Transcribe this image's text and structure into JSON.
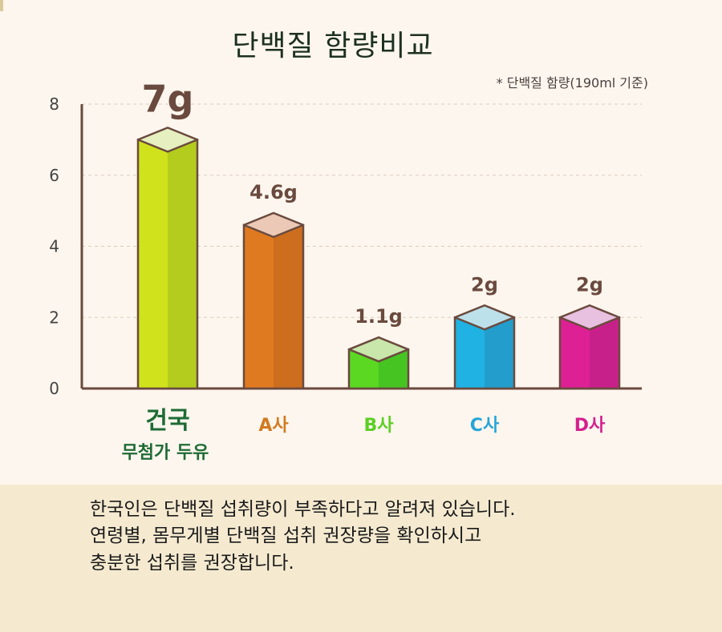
{
  "chart_data": {
    "type": "bar",
    "title": "단백질 함량비교",
    "note": "* 단백질 함량(190ml 기준)",
    "y_ticks": [
      "0",
      "2",
      "4",
      "6",
      "8"
    ],
    "ylim": [
      0,
      8
    ],
    "grid": true,
    "categories": [
      "건국 무첨가 두유",
      "A사",
      "B사",
      "C사",
      "D사"
    ],
    "category_lines": [
      [
        "건국",
        "무첨가 두유"
      ],
      [
        "A사"
      ],
      [
        "B사"
      ],
      [
        "C사"
      ],
      [
        "D사"
      ]
    ],
    "values": [
      7,
      4.6,
      1.1,
      2,
      2
    ],
    "value_labels": [
      "7g",
      "4.6g",
      "1.1g",
      "2g",
      "2g"
    ],
    "colors": [
      {
        "front": "#d0e21c",
        "side": "#b3cc1e",
        "top": "#e6efbf",
        "label": "#1d6b34"
      },
      {
        "front": "#e07a20",
        "side": "#cc6e1e",
        "top": "#ecc9b6",
        "label": "#d27a20"
      },
      {
        "front": "#5ad822",
        "side": "#46c422",
        "top": "#c9e6ab",
        "label": "#5ccf24"
      },
      {
        "front": "#20b2e2",
        "side": "#229dcc",
        "top": "#bde1ea",
        "label": "#26a5d8"
      },
      {
        "front": "#de2095",
        "side": "#c8208a",
        "top": "#e8c0e0",
        "label": "#d5208e"
      }
    ]
  },
  "description": [
    "한국인은 단백질 섭취량이 부족하다고 알려져 있습니다.",
    "연령별, 몸무게별 단백질 섭취 권장량을 확인하시고",
    "충분한 섭취를 권장합니다."
  ]
}
